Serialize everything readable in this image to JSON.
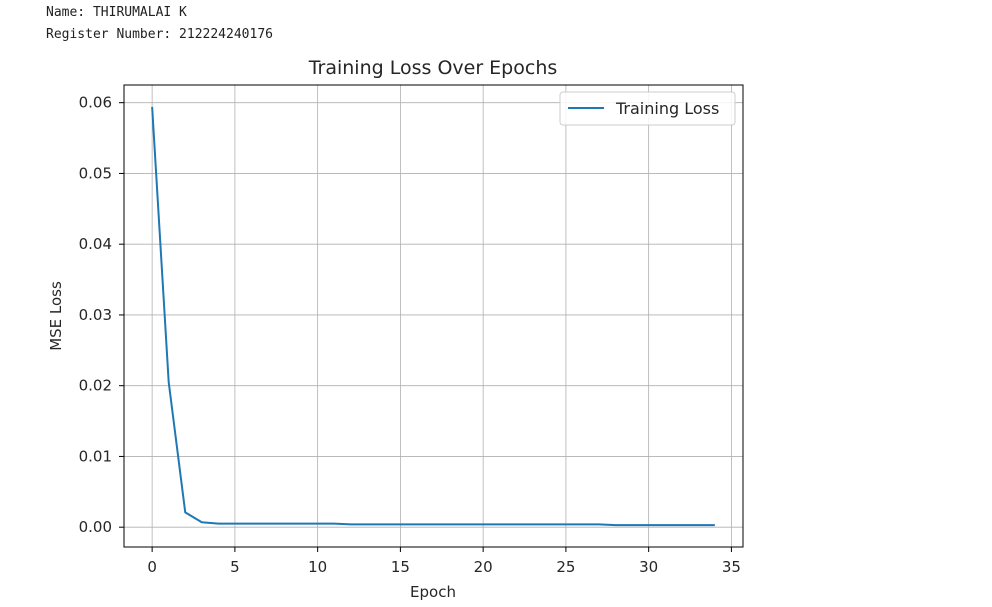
{
  "output": {
    "name_line": "Name: THIRUMALAI K",
    "register_line": "Register Number: 212224240176"
  },
  "chart_data": {
    "type": "line",
    "title": "Training Loss Over Epochs",
    "xlabel": "Epoch",
    "ylabel": "MSE Loss",
    "xlim": [
      -1.7,
      35.7
    ],
    "ylim": [
      -0.0028,
      0.0625
    ],
    "xticks": [
      0,
      5,
      10,
      15,
      20,
      25,
      30,
      35
    ],
    "xtick_labels": [
      "0",
      "5",
      "10",
      "15",
      "20",
      "25",
      "30",
      "35"
    ],
    "yticks": [
      0.0,
      0.01,
      0.02,
      0.03,
      0.04,
      0.05,
      0.06
    ],
    "ytick_labels": [
      "0.00",
      "0.01",
      "0.02",
      "0.03",
      "0.04",
      "0.05",
      "0.06"
    ],
    "grid": true,
    "legend_position": "upper right",
    "series": [
      {
        "name": "Training Loss",
        "color": "#1f77b4",
        "x": [
          0,
          1,
          2,
          3,
          4,
          5,
          6,
          7,
          8,
          9,
          10,
          11,
          12,
          13,
          14,
          15,
          16,
          17,
          18,
          19,
          20,
          21,
          22,
          23,
          24,
          25,
          26,
          27,
          28,
          29,
          30,
          31,
          32,
          33,
          34
        ],
        "y": [
          0.0594,
          0.0205,
          0.0021,
          0.0007,
          0.0005,
          0.0005,
          0.0005,
          0.0005,
          0.0005,
          0.0005,
          0.0005,
          0.0005,
          0.0004,
          0.0004,
          0.0004,
          0.0004,
          0.0004,
          0.0004,
          0.0004,
          0.0004,
          0.0004,
          0.0004,
          0.0004,
          0.0004,
          0.0004,
          0.0004,
          0.0004,
          0.0004,
          0.0003,
          0.0003,
          0.0003,
          0.0003,
          0.0003,
          0.0003,
          0.0003
        ]
      }
    ]
  }
}
